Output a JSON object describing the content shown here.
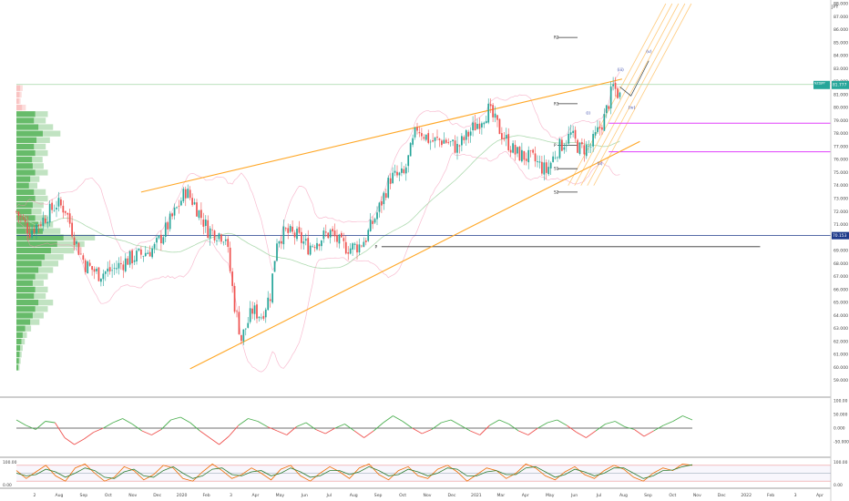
{
  "symbol": "NZDJPY",
  "currency_label": "JPY",
  "price_tag": {
    "symbol": "NZDJPY",
    "value": "81.777",
    "color": "#26a69a"
  },
  "pivot_tag": {
    "value": "70.153",
    "color": "#1e3a8a"
  },
  "colors": {
    "up": "#26a69a",
    "down": "#ef5350",
    "wedge": "#ffa726",
    "fib": "#ffcc80",
    "pivot_line": "#333333",
    "magenta": "#e040fb",
    "hline": "#1e3a8a",
    "osc": "#2e7d32"
  },
  "chart_data": [
    {
      "type": "candlestick",
      "title": "",
      "ylim": [
        58.0,
        88.0
      ],
      "y_ticks": [
        "88.000",
        "87.000",
        "86.000",
        "85.000",
        "84.000",
        "83.000",
        "82.000",
        "81.000",
        "80.000",
        "79.000",
        "78.000",
        "77.000",
        "76.000",
        "75.000",
        "74.000",
        "73.000",
        "72.000",
        "71.000",
        "70.000",
        "69.000",
        "68.000",
        "67.000",
        "66.000",
        "65.000",
        "64.000",
        "63.000",
        "62.000",
        "61.000",
        "60.000",
        "59.000"
      ],
      "x_ticks": [
        "2",
        "Aug",
        "Sep",
        "Oct",
        "Nov",
        "Dec",
        "2020",
        "Feb",
        "3",
        "Apr",
        "May",
        "Jun",
        "Jul",
        "Aug",
        "Sep",
        "Oct",
        "Nov",
        "Dec",
        "2021",
        "Mar",
        "Apr",
        "May",
        "Jun",
        "Jul",
        "Aug",
        "Sep",
        "Oct",
        "Nov",
        "Dec",
        "2022",
        "Feb",
        "3",
        "Apr"
      ],
      "price_path": [
        [
          0,
          72.0
        ],
        [
          6,
          70.5
        ],
        [
          12,
          71.4
        ],
        [
          18,
          72.6
        ],
        [
          22,
          72.2
        ],
        [
          27,
          69.5
        ],
        [
          31,
          67.9
        ],
        [
          37,
          67.2
        ],
        [
          43,
          67.5
        ],
        [
          50,
          68.3
        ],
        [
          56,
          68.7
        ],
        [
          62,
          69.2
        ],
        [
          67,
          70.6
        ],
        [
          72,
          72.2
        ],
        [
          76,
          73.6
        ],
        [
          80,
          72.6
        ],
        [
          86,
          70.6
        ],
        [
          94,
          70.1
        ],
        [
          98,
          64.8
        ],
        [
          101,
          62.2
        ],
        [
          106,
          64.4
        ],
        [
          110,
          64.0
        ],
        [
          114,
          65.6
        ],
        [
          117,
          69.9
        ],
        [
          121,
          70.4
        ],
        [
          126,
          70.1
        ],
        [
          131,
          69.3
        ],
        [
          136,
          69.9
        ],
        [
          141,
          70.4
        ],
        [
          146,
          69.4
        ],
        [
          150,
          69.2
        ],
        [
          154,
          69.4
        ],
        [
          157,
          70.0
        ],
        [
          163,
          72.3
        ],
        [
          168,
          74.6
        ],
        [
          174,
          74.8
        ],
        [
          180,
          78.5
        ],
        [
          186,
          77.4
        ],
        [
          192,
          77.5
        ],
        [
          198,
          76.9
        ],
        [
          205,
          78.4
        ],
        [
          212,
          79.8
        ],
        [
          218,
          78.0
        ],
        [
          224,
          76.5
        ],
        [
          232,
          76.0
        ],
        [
          238,
          75.1
        ],
        [
          243,
          76.8
        ],
        [
          249,
          77.9
        ],
        [
          253,
          76.8
        ],
        [
          258,
          77.0
        ],
        [
          264,
          79.2
        ],
        [
          268,
          81.6
        ],
        [
          271,
          80.9
        ]
      ],
      "volume_profile": [
        [
          81.5,
          0.06
        ],
        [
          81.0,
          0.05
        ],
        [
          80.5,
          0.04
        ],
        [
          80.0,
          0.09
        ],
        [
          79.5,
          0.3
        ],
        [
          79.0,
          0.28
        ],
        [
          78.5,
          0.35
        ],
        [
          78.0,
          0.42
        ],
        [
          77.5,
          0.32
        ],
        [
          77.0,
          0.28
        ],
        [
          76.5,
          0.3
        ],
        [
          76.0,
          0.25
        ],
        [
          75.5,
          0.26
        ],
        [
          75.0,
          0.3
        ],
        [
          74.5,
          0.22
        ],
        [
          74.0,
          0.2
        ],
        [
          73.5,
          0.28
        ],
        [
          73.0,
          0.3
        ],
        [
          72.5,
          0.26
        ],
        [
          72.0,
          0.24
        ],
        [
          71.5,
          0.3
        ],
        [
          71.0,
          0.35
        ],
        [
          70.5,
          0.42
        ],
        [
          70.0,
          0.75
        ],
        [
          69.5,
          0.65
        ],
        [
          69.0,
          0.55
        ],
        [
          68.5,
          0.45
        ],
        [
          68.0,
          0.4
        ],
        [
          67.5,
          0.35
        ],
        [
          67.0,
          0.3
        ],
        [
          66.5,
          0.26
        ],
        [
          66.0,
          0.3
        ],
        [
          65.5,
          0.28
        ],
        [
          65.0,
          0.35
        ],
        [
          64.5,
          0.3
        ],
        [
          64.0,
          0.26
        ],
        [
          63.5,
          0.22
        ],
        [
          63.0,
          0.14
        ],
        [
          62.5,
          0.1
        ],
        [
          62.0,
          0.08
        ],
        [
          61.5,
          0.06
        ],
        [
          61.0,
          0.05
        ],
        [
          60.5,
          0.04
        ],
        [
          60.0,
          0.03
        ]
      ],
      "wedge_upper": [
        [
          56,
          73.5
        ],
        [
          272,
          82.2
        ]
      ],
      "wedge_lower": [
        [
          78,
          59.9
        ],
        [
          280,
          77.4
        ]
      ],
      "pivot_points": [
        {
          "label": "R2",
          "value": 85.4
        },
        {
          "label": "R1",
          "value": 80.3
        },
        {
          "label": "P",
          "value": 77.1
        },
        {
          "label": "S1",
          "value": 75.3
        },
        {
          "label": "S2",
          "value": 73.5
        }
      ],
      "pivot_point_2020": {
        "label": "P",
        "value": 69.3
      },
      "wave_labels": [
        {
          "label": "(i)",
          "x": 257,
          "value": 79.5
        },
        {
          "label": "(ii)",
          "x": 262,
          "value": 75.6
        },
        {
          "label": "(iii)",
          "x": 271,
          "value": 82.8
        },
        {
          "label": "(iv)",
          "x": 276,
          "value": 79.9
        },
        {
          "label": "(v)",
          "x": 284,
          "value": 84.2
        }
      ],
      "horizontal_lines": [
        70.15,
        81.78
      ],
      "magenta_levels": [
        78.8,
        76.6
      ]
    },
    {
      "type": "line",
      "title": "",
      "y_ticks": [
        "100.00",
        "50.000",
        "0.000",
        "-50.000"
      ],
      "ylim": [
        -100,
        100
      ],
      "baseline": 0,
      "series": [
        {
          "values": [
            30,
            10,
            -5,
            25,
            20,
            -35,
            -60,
            -40,
            -15,
            0,
            20,
            35,
            15,
            -10,
            -25,
            -5,
            30,
            40,
            20,
            -10,
            -35,
            -60,
            -30,
            10,
            35,
            25,
            5,
            -10,
            -25,
            5,
            20,
            -5,
            -20,
            0,
            15,
            -10,
            -35,
            -10,
            20,
            45,
            25,
            0,
            -20,
            -5,
            20,
            30,
            10,
            -10,
            -25,
            10,
            30,
            15,
            -10,
            -25,
            0,
            20,
            30,
            10,
            -15,
            -35,
            -10,
            15,
            25,
            5,
            -5,
            -30,
            -10,
            10,
            25,
            45,
            30
          ]
        }
      ]
    },
    {
      "type": "line",
      "title": "",
      "y_ticks": [
        "100.00",
        "0.00"
      ],
      "ylim": [
        0,
        100
      ],
      "levels": [
        80,
        50,
        20
      ],
      "series": [
        {
          "values": [
            60,
            30,
            55,
            80,
            40,
            20,
            70,
            85,
            50,
            20,
            35,
            75,
            60,
            25,
            45,
            80,
            70,
            30,
            20,
            55,
            85,
            60,
            30,
            45,
            70,
            50,
            25,
            65,
            80,
            40,
            20,
            50,
            75,
            55,
            30,
            70,
            85,
            45,
            25,
            60,
            75,
            40,
            30,
            65,
            80,
            55,
            20,
            45,
            70,
            60,
            30,
            50,
            85,
            70,
            40,
            25,
            55,
            75,
            45,
            30,
            60,
            80,
            65,
            35,
            20,
            50,
            70,
            60,
            85,
            80
          ]
        },
        {
          "values": [
            50,
            40,
            45,
            65,
            55,
            35,
            50,
            70,
            60,
            35,
            30,
            55,
            65,
            40,
            35,
            60,
            75,
            50,
            30,
            40,
            65,
            70,
            45,
            40,
            55,
            60,
            40,
            50,
            70,
            55,
            35,
            40,
            60,
            60,
            45,
            55,
            75,
            60,
            40,
            45,
            65,
            55,
            40,
            50,
            70,
            65,
            40,
            40,
            55,
            60,
            45,
            45,
            70,
            75,
            55,
            35,
            45,
            65,
            55,
            40,
            50,
            70,
            70,
            50,
            30,
            40,
            60,
            62,
            75,
            82
          ]
        }
      ]
    }
  ]
}
